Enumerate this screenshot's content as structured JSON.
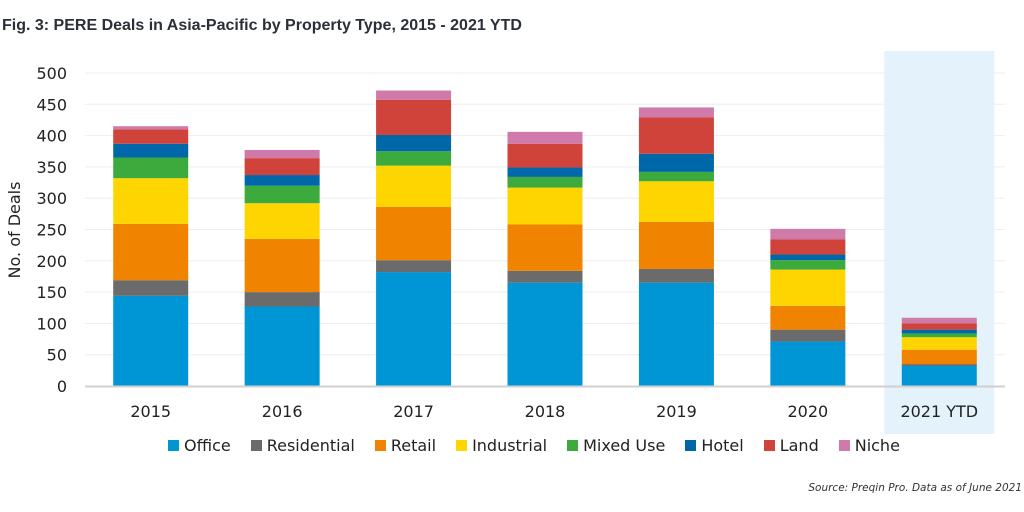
{
  "chart_data": {
    "type": "bar",
    "stacked": true,
    "title": "Fig. 3: PERE Deals in Asia-Pacific by Property Type, 2015 - 2021 YTD",
    "xlabel": "",
    "ylabel": "No. of Deals",
    "ylim": [
      0,
      500
    ],
    "yticks": [
      0,
      50,
      100,
      150,
      200,
      250,
      300,
      350,
      400,
      450,
      500
    ],
    "grid": true,
    "legend_position": "bottom",
    "categories": [
      "2015",
      "2016",
      "2017",
      "2018",
      "2019",
      "2020",
      "2021 YTD"
    ],
    "highlighted_category": "2021 YTD",
    "series": [
      {
        "name": "Office",
        "color": "#0096d6",
        "values": [
          144,
          127,
          182,
          165,
          165,
          71,
          32
        ]
      },
      {
        "name": "Residential",
        "color": "#6b6b6b",
        "values": [
          25,
          23,
          19,
          19,
          22,
          19,
          3
        ]
      },
      {
        "name": "Retail",
        "color": "#f08300",
        "values": [
          90,
          85,
          85,
          74,
          75,
          38,
          23
        ]
      },
      {
        "name": "Industrial",
        "color": "#ffd500",
        "values": [
          73,
          57,
          66,
          59,
          65,
          58,
          20
        ]
      },
      {
        "name": "Mixed Use",
        "color": "#3caa3c",
        "values": [
          33,
          28,
          23,
          17,
          15,
          15,
          6
        ]
      },
      {
        "name": "Hotel",
        "color": "#0068a8",
        "values": [
          22,
          17,
          26,
          15,
          29,
          9,
          6
        ]
      },
      {
        "name": "Land",
        "color": "#d0433a",
        "values": [
          23,
          27,
          56,
          38,
          58,
          24,
          10
        ]
      },
      {
        "name": "Niche",
        "color": "#d07aaa",
        "values": [
          5,
          13,
          15,
          19,
          16,
          17,
          9
        ]
      }
    ],
    "source": "Source: Preqin Pro. Data as of June 2021"
  },
  "highlight_color": "#e3f2fb"
}
